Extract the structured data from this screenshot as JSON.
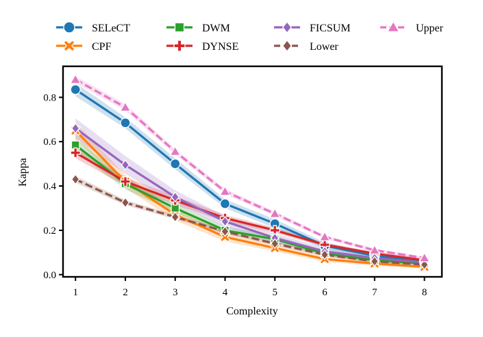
{
  "chart_data": {
    "type": "line",
    "title": "",
    "xlabel": "Complexity",
    "ylabel": "Kappa",
    "x": [
      1,
      2,
      3,
      4,
      5,
      6,
      7,
      8
    ],
    "xticks": [
      "1",
      "2",
      "3",
      "4",
      "5",
      "6",
      "7",
      "8"
    ],
    "yticks": [
      "0.0",
      "0.2",
      "0.4",
      "0.6",
      "0.8"
    ],
    "xlim": [
      0.75,
      8.35
    ],
    "ylim": [
      -0.01,
      0.94
    ],
    "grid": false,
    "legend_position": "top",
    "series": [
      {
        "name": "SELeCT",
        "color": "#1f77b4",
        "marker": "circle",
        "dashed": false,
        "values": [
          0.835,
          0.685,
          0.5,
          0.32,
          0.23,
          0.13,
          0.085,
          0.06
        ],
        "band": [
          0.03,
          0.025,
          0.025,
          0.02,
          0.02,
          0.015,
          0.012,
          0.01
        ]
      },
      {
        "name": "CPF",
        "color": "#ff7f0e",
        "marker": "x",
        "dashed": false,
        "values": [
          0.65,
          0.42,
          0.27,
          0.17,
          0.12,
          0.07,
          0.05,
          0.035
        ],
        "band": [
          0.035,
          0.03,
          0.025,
          0.02,
          0.015,
          0.012,
          0.01,
          0.008
        ]
      },
      {
        "name": "DWM",
        "color": "#2ca02c",
        "marker": "square",
        "dashed": false,
        "values": [
          0.585,
          0.41,
          0.3,
          0.2,
          0.16,
          0.095,
          0.065,
          0.05
        ],
        "band": [
          0.03,
          0.025,
          0.02,
          0.018,
          0.015,
          0.012,
          0.01,
          0.008
        ]
      },
      {
        "name": "DYNSE",
        "color": "#d62728",
        "marker": "plus",
        "dashed": false,
        "values": [
          0.55,
          0.42,
          0.335,
          0.255,
          0.2,
          0.135,
          0.095,
          0.065
        ],
        "band": [
          0.025,
          0.02,
          0.02,
          0.015,
          0.012,
          0.01,
          0.008,
          0.008
        ]
      },
      {
        "name": "FICSUM",
        "color": "#9467bd",
        "marker": "diamond",
        "dashed": false,
        "values": [
          0.66,
          0.495,
          0.35,
          0.24,
          0.165,
          0.105,
          0.075,
          0.055
        ],
        "band": [
          0.045,
          0.04,
          0.03,
          0.025,
          0.02,
          0.015,
          0.012,
          0.01
        ]
      },
      {
        "name": "Lower",
        "color": "#8c564b",
        "marker": "diamond",
        "dashed": true,
        "values": [
          0.43,
          0.325,
          0.26,
          0.195,
          0.14,
          0.09,
          0.06,
          0.045
        ],
        "band": [
          0.015,
          0.012,
          0.01,
          0.01,
          0.008,
          0.008,
          0.006,
          0.006
        ]
      },
      {
        "name": "Upper",
        "color": "#e377c2",
        "marker": "triangle",
        "dashed": true,
        "values": [
          0.88,
          0.755,
          0.555,
          0.375,
          0.275,
          0.17,
          0.11,
          0.075
        ],
        "band": [
          0.015,
          0.015,
          0.012,
          0.012,
          0.01,
          0.008,
          0.008,
          0.006
        ]
      }
    ]
  }
}
